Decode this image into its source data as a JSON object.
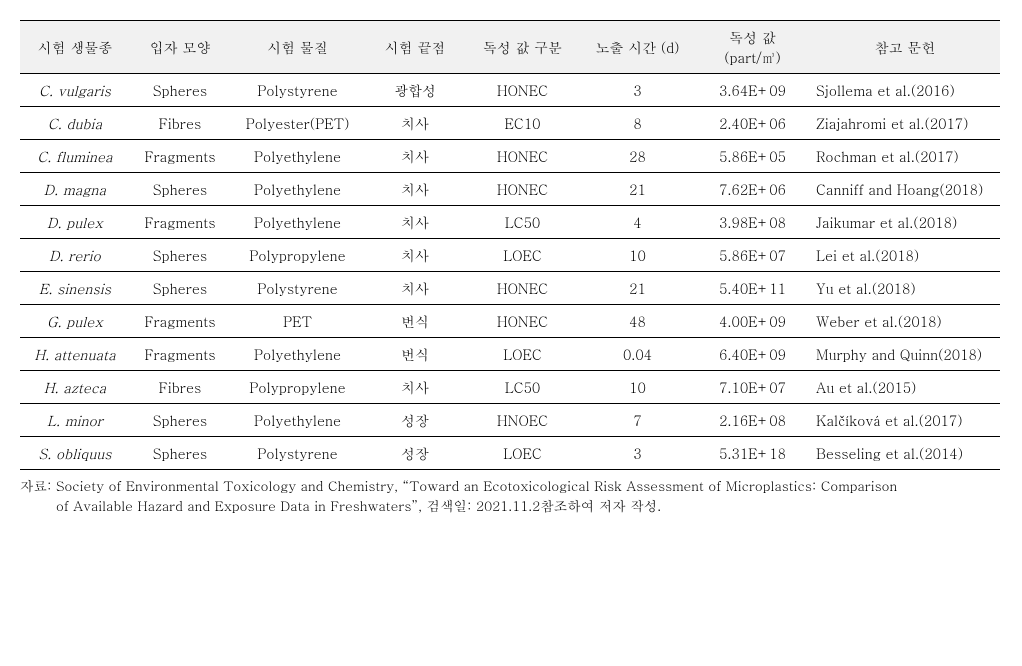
{
  "table": {
    "columns": [
      "시험 생물종",
      "입자 모양",
      "시험 물질",
      "시험 끝점",
      "독성 값 구분",
      "노출 시간 (d)",
      "독성 값\n(part/㎥)",
      "참고 문헌"
    ],
    "rows": [
      {
        "species": "C. vulgaris",
        "shape": "Spheres",
        "material": "Polystyrene",
        "endpoint": "광합성",
        "toxType": "HONEC",
        "expTime": "3",
        "toxVal": "3.64E+09",
        "ref": "Sjollema et al.(2016)"
      },
      {
        "species": "C. dubia",
        "shape": "Fibres",
        "material": "Polyester(PET)",
        "endpoint": "치사",
        "toxType": "EC10",
        "expTime": "8",
        "toxVal": "2.40E+06",
        "ref": "Ziajahromi et al.(2017)"
      },
      {
        "species": "C. fluminea",
        "shape": "Fragments",
        "material": "Polyethylene",
        "endpoint": "치사",
        "toxType": "HONEC",
        "expTime": "28",
        "toxVal": "5.86E+05",
        "ref": "Rochman et al.(2017)"
      },
      {
        "species": "D. magna",
        "shape": "Spheres",
        "material": "Polyethylene",
        "endpoint": "치사",
        "toxType": "HONEC",
        "expTime": "21",
        "toxVal": "7.62E+06",
        "ref": "Canniff and Hoang(2018)"
      },
      {
        "species": "D. pulex",
        "shape": "Fragments",
        "material": "Polyethylene",
        "endpoint": "치사",
        "toxType": "LC50",
        "expTime": "4",
        "toxVal": "3.98E+08",
        "ref": "Jaikumar et al.(2018)"
      },
      {
        "species": "D. rerio",
        "shape": "Spheres",
        "material": "Polypropylene",
        "endpoint": "치사",
        "toxType": "LOEC",
        "expTime": "10",
        "toxVal": "5.86E+07",
        "ref": "Lei et al.(2018)"
      },
      {
        "species": "E. sinensis",
        "shape": "Spheres",
        "material": "Polystyrene",
        "endpoint": "치사",
        "toxType": "HONEC",
        "expTime": "21",
        "toxVal": "5.40E+11",
        "ref": "Yu et al.(2018)"
      },
      {
        "species": "G. pulex",
        "shape": "Fragments",
        "material": "PET",
        "endpoint": "번식",
        "toxType": "HONEC",
        "expTime": "48",
        "toxVal": "4.00E+09",
        "ref": "Weber et al.(2018)"
      },
      {
        "species": "H. attenuata",
        "shape": "Fragments",
        "material": "Polyethylene",
        "endpoint": "번식",
        "toxType": "LOEC",
        "expTime": "0.04",
        "toxVal": "6.40E+09",
        "ref": "Murphy and Quinn(2018)"
      },
      {
        "species": "H. azteca",
        "shape": "Fibres",
        "material": "Polypropylene",
        "endpoint": "치사",
        "toxType": "LC50",
        "expTime": "10",
        "toxVal": "7.10E+07",
        "ref": "Au et al.(2015)"
      },
      {
        "species": "L. minor",
        "shape": "Spheres",
        "material": "Polyethylene",
        "endpoint": "성장",
        "toxType": "HNOEC",
        "expTime": "7",
        "toxVal": "2.16E+08",
        "ref": "Kalčíková et al.(2017)"
      },
      {
        "species": "S. obliquus",
        "shape": "Spheres",
        "material": "Polystyrene",
        "endpoint": "성장",
        "toxType": "LOEC",
        "expTime": "3",
        "toxVal": "5.31E+18",
        "ref": "Besseling et al.(2014)"
      }
    ]
  },
  "caption": {
    "prefix": "자료: ",
    "line1": "Society of Environmental Toxicology and Chemistry, “Toward an Ecotoxicological Risk Assessment of Microplastics: Comparison",
    "line2": "of Available Hazard and Exposure Data in Freshwaters”, 검색일: 2021.11.2참조하여 저자 작성."
  }
}
